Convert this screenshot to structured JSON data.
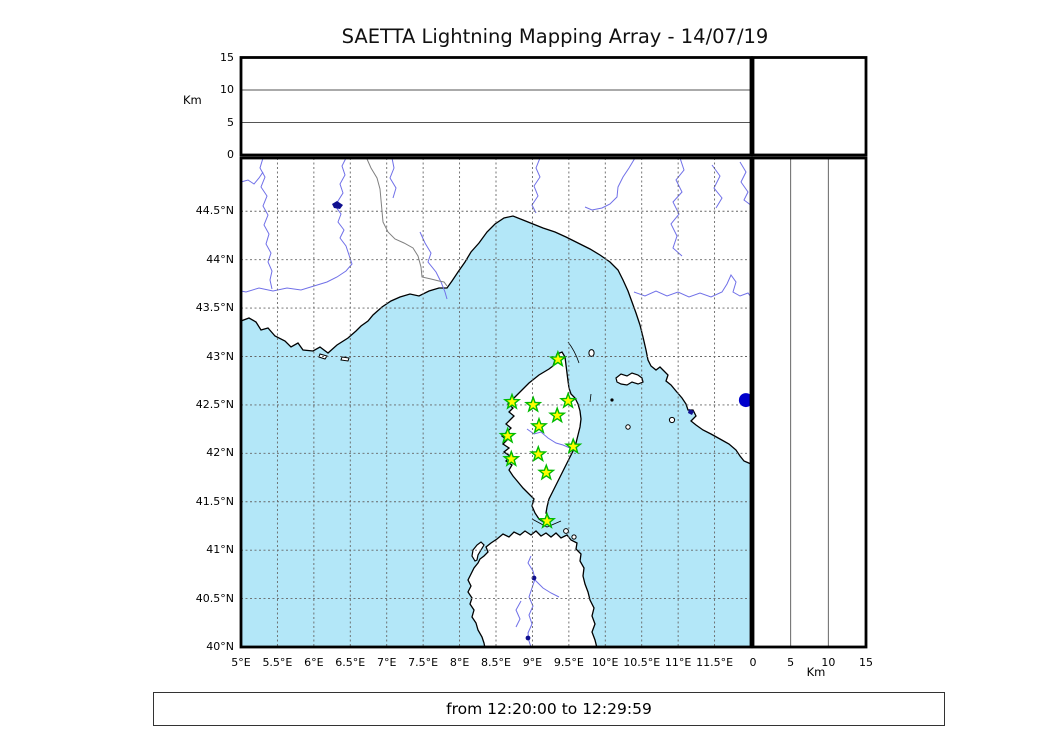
{
  "title": "SAETTA Lightning Mapping Array - 14/07/19",
  "footer": {
    "time_range_label": "from 12:20:00 to 12:29:59"
  },
  "axis_labels": {
    "km_top": "Km",
    "km_bottom": "Km"
  },
  "chart_data": {
    "type": "scatter",
    "title": "SAETTA Lightning Mapping Array - 14/07/19",
    "subtitle": "from 12:20:00 to 12:29:59",
    "layout_hint": "LMA composite: altitude-vs-longitude panel on top, lat/lon map in center, altitude-vs-latitude panel on right, empty histogram box in top-right corner; dotted 0.5-degree graticule on map",
    "map_panel": {
      "lon_range": [
        5,
        12
      ],
      "lat_range": [
        40,
        45.05
      ],
      "grid": "dotted every 0.5 degree",
      "lon_ticks": [
        {
          "v": 5,
          "label": "5°E"
        },
        {
          "v": 5.5,
          "label": "5.5°E"
        },
        {
          "v": 6,
          "label": "6°E"
        },
        {
          "v": 6.5,
          "label": "6.5°E"
        },
        {
          "v": 7,
          "label": "7°E"
        },
        {
          "v": 7.5,
          "label": "7.5°E"
        },
        {
          "v": 8,
          "label": "8°E"
        },
        {
          "v": 8.5,
          "label": "8.5°E"
        },
        {
          "v": 9,
          "label": "9°E"
        },
        {
          "v": 9.5,
          "label": "9.5°E"
        },
        {
          "v": 10,
          "label": "10°E"
        },
        {
          "v": 10.5,
          "label": "10.5°E"
        },
        {
          "v": 11,
          "label": "11°E"
        },
        {
          "v": 11.5,
          "label": "11.5°E"
        }
      ],
      "lat_ticks": [
        {
          "v": 40,
          "label": "40°N"
        },
        {
          "v": 40.5,
          "label": "40.5°N"
        },
        {
          "v": 41,
          "label": "41°N"
        },
        {
          "v": 41.5,
          "label": "41.5°N"
        },
        {
          "v": 42,
          "label": "42°N"
        },
        {
          "v": 42.5,
          "label": "42.5°N"
        },
        {
          "v": 43,
          "label": "43°N"
        },
        {
          "v": 43.5,
          "label": "43.5°N"
        },
        {
          "v": 44,
          "label": "44°N"
        },
        {
          "v": 44.5,
          "label": "44.5°N"
        }
      ],
      "stations": [
        {
          "lon": 9.35,
          "lat": 42.97
        },
        {
          "lon": 8.72,
          "lat": 42.53
        },
        {
          "lon": 9.01,
          "lat": 42.5
        },
        {
          "lon": 9.49,
          "lat": 42.54
        },
        {
          "lon": 9.34,
          "lat": 42.39
        },
        {
          "lon": 9.09,
          "lat": 42.28
        },
        {
          "lon": 8.66,
          "lat": 42.18
        },
        {
          "lon": 9.56,
          "lat": 42.07
        },
        {
          "lon": 9.08,
          "lat": 41.99
        },
        {
          "lon": 8.71,
          "lat": 41.94
        },
        {
          "lon": 9.19,
          "lat": 41.8
        },
        {
          "lon": 9.2,
          "lat": 41.3
        }
      ],
      "sources": [
        {
          "lon": 11.93,
          "lat": 42.55
        }
      ]
    },
    "altitude_panel_top": {
      "axis_label": "Km",
      "range": [
        0,
        15
      ],
      "ticks": [
        {
          "v": 0,
          "label": "0"
        },
        {
          "v": 5,
          "label": "5"
        },
        {
          "v": 10,
          "label": "10"
        },
        {
          "v": 15,
          "label": "15"
        }
      ],
      "gridlines": [
        5,
        10
      ],
      "points": []
    },
    "altitude_panel_right": {
      "axis_label": "Km",
      "range": [
        0,
        15
      ],
      "ticks": [
        {
          "v": 0,
          "label": "0"
        },
        {
          "v": 5,
          "label": "5"
        },
        {
          "v": 10,
          "label": "10"
        },
        {
          "v": 15,
          "label": "15"
        }
      ],
      "gridlines": [
        5,
        10
      ],
      "points": []
    },
    "colors": {
      "sea": "#b3e7f8",
      "land": "#ffffff",
      "coastline": "#000000",
      "river": "#7070e8",
      "country_border": "#808080",
      "lake": "#101090",
      "graticule": "#666666",
      "station_fill": "#fdfd00",
      "station_edge": "#00bb00",
      "source_dot": "#0000cc"
    }
  }
}
